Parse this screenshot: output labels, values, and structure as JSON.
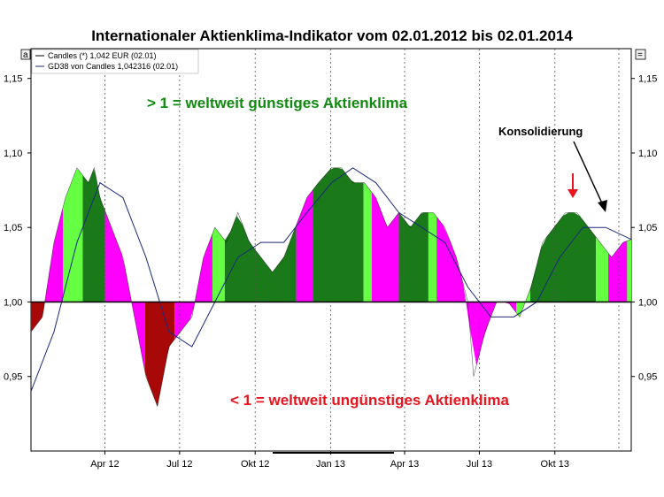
{
  "colors": {
    "strong_above": "#1a7a1a",
    "rising_above": "#66ff44",
    "falling": "#ff00ff",
    "strong_below": "#a80808",
    "gd_line": "#1b2a7a",
    "price_line": "#000000",
    "gridline": "#555555"
  },
  "chart_data": {
    "type": "area",
    "title": "Internationaler Aktienklima-Indikator vom 02.01.2012 bis 02.01.2014",
    "x_tick_labels": [
      "Apr 12",
      "Jul 12",
      "Okt 12",
      "Jan 13",
      "Apr 13",
      "Jul 13",
      "Okt 13"
    ],
    "x_ticks": [
      "2012-04-01",
      "2012-07-01",
      "2012-10-01",
      "2013-01-01",
      "2013-04-01",
      "2013-07-01",
      "2013-10-01"
    ],
    "y_tick_labels": [
      "1,15",
      "1,10",
      "1,05",
      "1,00",
      "0,95"
    ],
    "y_ticks": [
      1.15,
      1.1,
      1.05,
      1.0,
      0.95
    ],
    "xlim": [
      "2012-01-02",
      "2014-01-02"
    ],
    "ylim": [
      0.9,
      1.17
    ],
    "baseline": 1.0,
    "grid": "vertical dashed at month ticks",
    "legend_position": "top-left",
    "legend": [
      {
        "label": "Candles (*) 1,042 EUR (02.01)"
      },
      {
        "label": "GD38 von Candles 1,042316 (02.01)"
      }
    ],
    "series": [
      {
        "name": "Candles (*)",
        "x": [
          "2012-01-02",
          "2012-01-16",
          "2012-01-30",
          "2012-02-13",
          "2012-02-27",
          "2012-03-12",
          "2012-03-19",
          "2012-03-26",
          "2012-04-09",
          "2012-04-23",
          "2012-05-07",
          "2012-05-21",
          "2012-06-04",
          "2012-06-18",
          "2012-07-02",
          "2012-07-16",
          "2012-07-30",
          "2012-08-13",
          "2012-08-27",
          "2012-09-10",
          "2012-09-24",
          "2012-10-08",
          "2012-10-22",
          "2012-11-05",
          "2012-11-19",
          "2012-12-03",
          "2012-12-17",
          "2013-01-02",
          "2013-01-14",
          "2013-01-28",
          "2013-02-11",
          "2013-02-25",
          "2013-03-11",
          "2013-03-25",
          "2013-04-08",
          "2013-04-22",
          "2013-05-06",
          "2013-05-20",
          "2013-06-03",
          "2013-06-17",
          "2013-06-24",
          "2013-07-08",
          "2013-07-22",
          "2013-08-05",
          "2013-08-19",
          "2013-09-02",
          "2013-09-16",
          "2013-09-30",
          "2013-10-14",
          "2013-10-28",
          "2013-11-11",
          "2013-11-25",
          "2013-12-09",
          "2013-12-23",
          "2014-01-02"
        ],
        "values": [
          0.98,
          0.99,
          1.04,
          1.07,
          1.09,
          1.08,
          1.09,
          1.07,
          1.05,
          1.03,
          0.99,
          0.95,
          0.93,
          0.97,
          0.98,
          0.99,
          1.03,
          1.05,
          1.04,
          1.06,
          1.04,
          1.03,
          1.02,
          1.03,
          1.05,
          1.07,
          1.08,
          1.09,
          1.09,
          1.08,
          1.08,
          1.07,
          1.05,
          1.06,
          1.05,
          1.06,
          1.06,
          1.05,
          1.03,
          1.0,
          0.95,
          0.98,
          1.0,
          1.0,
          0.99,
          1.01,
          1.04,
          1.05,
          1.06,
          1.06,
          1.05,
          1.04,
          1.03,
          1.04,
          1.042
        ]
      },
      {
        "name": "GD38 von Candles",
        "x": [
          "2012-01-02",
          "2012-01-30",
          "2012-02-27",
          "2012-03-26",
          "2012-04-23",
          "2012-05-21",
          "2012-06-18",
          "2012-07-16",
          "2012-08-13",
          "2012-09-10",
          "2012-10-08",
          "2012-11-05",
          "2012-12-03",
          "2013-01-02",
          "2013-01-28",
          "2013-02-25",
          "2013-03-25",
          "2013-04-22",
          "2013-05-20",
          "2013-06-17",
          "2013-07-15",
          "2013-08-12",
          "2013-09-09",
          "2013-10-07",
          "2013-11-04",
          "2013-12-02",
          "2014-01-02"
        ],
        "values": [
          0.94,
          0.98,
          1.04,
          1.08,
          1.07,
          1.03,
          0.98,
          0.97,
          1.0,
          1.03,
          1.04,
          1.04,
          1.06,
          1.08,
          1.09,
          1.08,
          1.06,
          1.05,
          1.04,
          1.01,
          0.99,
          0.99,
          1.0,
          1.03,
          1.05,
          1.05,
          1.042
        ]
      }
    ],
    "bands": [
      {
        "from": "2012-01-02",
        "to": "2012-01-20",
        "color": "strong_below"
      },
      {
        "from": "2012-01-20",
        "to": "2012-02-10",
        "color": "falling"
      },
      {
        "from": "2012-02-10",
        "to": "2012-03-05",
        "color": "rising_above"
      },
      {
        "from": "2012-03-05",
        "to": "2012-04-01",
        "color": "strong_above"
      },
      {
        "from": "2012-04-01",
        "to": "2012-05-20",
        "color": "falling"
      },
      {
        "from": "2012-05-20",
        "to": "2012-06-25",
        "color": "strong_below"
      },
      {
        "from": "2012-06-25",
        "to": "2012-08-10",
        "color": "falling"
      },
      {
        "from": "2012-08-10",
        "to": "2012-08-25",
        "color": "rising_above"
      },
      {
        "from": "2012-08-25",
        "to": "2012-11-20",
        "color": "strong_above"
      },
      {
        "from": "2012-11-20",
        "to": "2012-12-10",
        "color": "falling"
      },
      {
        "from": "2012-12-10",
        "to": "2013-02-10",
        "color": "strong_above"
      },
      {
        "from": "2013-02-10",
        "to": "2013-02-20",
        "color": "rising_above"
      },
      {
        "from": "2013-02-20",
        "to": "2013-03-25",
        "color": "falling"
      },
      {
        "from": "2013-03-25",
        "to": "2013-04-30",
        "color": "strong_above"
      },
      {
        "from": "2013-04-30",
        "to": "2013-05-10",
        "color": "rising_above"
      },
      {
        "from": "2013-05-10",
        "to": "2013-08-15",
        "color": "falling"
      },
      {
        "from": "2013-08-15",
        "to": "2013-09-01",
        "color": "rising_above"
      },
      {
        "from": "2013-09-01",
        "to": "2013-11-20",
        "color": "strong_above"
      },
      {
        "from": "2013-11-20",
        "to": "2013-12-05",
        "color": "rising_above"
      },
      {
        "from": "2013-12-05",
        "to": "2013-12-28",
        "color": "falling"
      },
      {
        "from": "2013-12-28",
        "to": "2014-01-02",
        "color": "rising_above"
      }
    ],
    "annotations": [
      {
        "text": "> 1 = weltweit günstiges Aktienklima",
        "color": "green"
      },
      {
        "text": "< 1 = weltweit ungünstiges Aktienklima",
        "color": "red"
      },
      {
        "text": "Konsolidierung",
        "color": "black"
      }
    ]
  },
  "ui": {
    "corner_left": "a",
    "corner_right": "="
  }
}
